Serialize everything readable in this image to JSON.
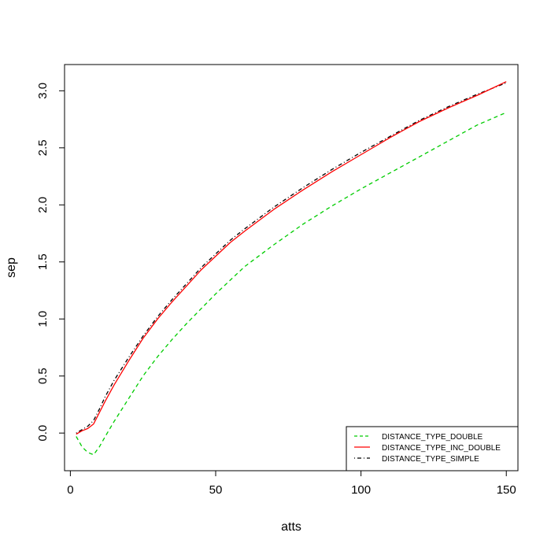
{
  "chart_data": {
    "type": "line",
    "title": "",
    "xlabel": "atts",
    "ylabel": "sep",
    "xlim": [
      -2,
      154
    ],
    "ylim": [
      -0.33,
      3.23
    ],
    "xticks": [
      0,
      50,
      100,
      150
    ],
    "yticks": [
      0.0,
      0.5,
      1.0,
      1.5,
      2.0,
      2.5,
      3.0
    ],
    "xtick_labels": [
      "0",
      "50",
      "100",
      "150"
    ],
    "ytick_labels": [
      "0.0",
      "0.5",
      "1.0",
      "1.5",
      "2.0",
      "2.5",
      "3.0"
    ],
    "grid": false,
    "legend_position": "bottom-right",
    "series": [
      {
        "name": "DISTANCE_TYPE_DOUBLE",
        "color": "#00cc00",
        "dash": "dashed",
        "x": [
          2,
          4,
          6,
          8,
          10,
          12,
          15,
          20,
          25,
          30,
          35,
          40,
          45,
          50,
          55,
          60,
          70,
          80,
          90,
          100,
          110,
          120,
          130,
          140,
          150
        ],
        "y": [
          -0.03,
          -0.12,
          -0.17,
          -0.19,
          -0.12,
          -0.03,
          0.1,
          0.3,
          0.5,
          0.67,
          0.82,
          0.96,
          1.09,
          1.22,
          1.34,
          1.46,
          1.65,
          1.83,
          1.99,
          2.14,
          2.28,
          2.42,
          2.56,
          2.7,
          2.81
        ]
      },
      {
        "name": "DISTANCE_TYPE_INC_DOUBLE",
        "color": "#ff0000",
        "dash": "solid",
        "x": [
          2,
          4,
          6,
          8,
          10,
          12,
          15,
          20,
          25,
          30,
          35,
          40,
          45,
          50,
          55,
          60,
          70,
          80,
          90,
          100,
          110,
          120,
          130,
          140,
          150
        ],
        "y": [
          -0.01,
          0.02,
          0.04,
          0.08,
          0.18,
          0.28,
          0.42,
          0.63,
          0.83,
          1.0,
          1.15,
          1.29,
          1.43,
          1.55,
          1.67,
          1.77,
          1.96,
          2.13,
          2.29,
          2.44,
          2.59,
          2.73,
          2.85,
          2.96,
          3.08
        ]
      },
      {
        "name": "DISTANCE_TYPE_SIMPLE",
        "color": "#000000",
        "dash": "dotdash",
        "x": [
          2,
          4,
          6,
          8,
          10,
          12,
          15,
          20,
          25,
          30,
          35,
          40,
          45,
          50,
          55,
          60,
          70,
          80,
          90,
          100,
          110,
          120,
          130,
          140,
          150
        ],
        "y": [
          0.0,
          0.03,
          0.06,
          0.11,
          0.21,
          0.32,
          0.46,
          0.66,
          0.85,
          1.02,
          1.17,
          1.31,
          1.45,
          1.57,
          1.69,
          1.79,
          1.98,
          2.15,
          2.31,
          2.46,
          2.6,
          2.74,
          2.86,
          2.97,
          3.07
        ]
      }
    ]
  }
}
